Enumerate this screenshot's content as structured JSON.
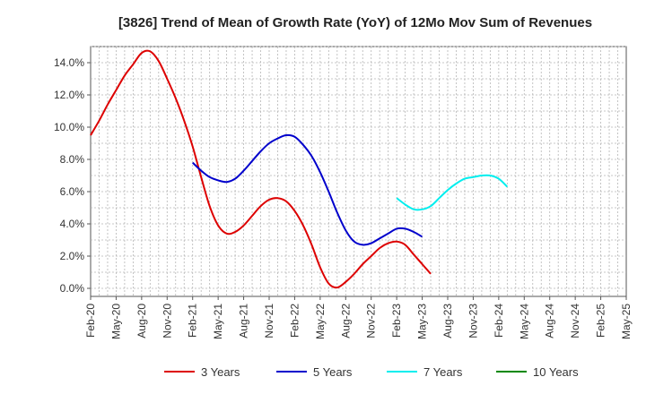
{
  "chart_data": {
    "type": "line",
    "title": "[3826]  Trend of Mean of Growth Rate (YoY) of 12Mo Mov Sum of Revenues",
    "xlabel": "",
    "ylabel": "",
    "ylim": [
      -0.5,
      15.0
    ],
    "yticks": [
      0,
      2,
      4,
      6,
      8,
      10,
      12,
      14
    ],
    "ytick_labels": [
      "0.0%",
      "2.0%",
      "4.0%",
      "6.0%",
      "8.0%",
      "10.0%",
      "12.0%",
      "14.0%"
    ],
    "x_labels": [
      "Feb-20",
      "May-20",
      "Aug-20",
      "Nov-20",
      "Feb-21",
      "May-21",
      "Aug-21",
      "Nov-21",
      "Feb-22",
      "May-22",
      "Aug-22",
      "Nov-22",
      "Feb-23",
      "May-23",
      "Aug-23",
      "Nov-23",
      "Feb-24",
      "May-24",
      "Aug-24",
      "Nov-24",
      "Feb-25",
      "May-25"
    ],
    "grid": true,
    "legend_position": "bottom",
    "series": [
      {
        "name": "3 Years",
        "color": "#dd0000",
        "start_index": 0,
        "values": [
          9.5,
          10.4,
          11.4,
          12.3,
          13.2,
          13.9,
          14.6,
          14.7,
          14.1,
          13.0,
          11.8,
          10.4,
          8.8,
          6.9,
          5.1,
          3.9,
          3.4,
          3.5,
          3.9,
          4.5,
          5.1,
          5.5,
          5.6,
          5.4,
          4.8,
          3.9,
          2.7,
          1.3,
          0.3,
          0.05,
          0.4,
          0.9,
          1.5,
          2.0,
          2.5,
          2.8,
          2.9,
          2.7,
          2.1,
          1.5,
          0.9
        ]
      },
      {
        "name": "5 Years",
        "color": "#0000cc",
        "start_index": 12,
        "values": [
          7.8,
          7.3,
          6.9,
          6.7,
          6.6,
          6.8,
          7.3,
          7.9,
          8.5,
          9.0,
          9.3,
          9.5,
          9.4,
          8.9,
          8.2,
          7.2,
          6.0,
          4.7,
          3.6,
          2.9,
          2.7,
          2.8,
          3.1,
          3.4,
          3.7,
          3.7,
          3.5,
          3.2
        ]
      },
      {
        "name": "7 Years",
        "color": "#00eeee",
        "start_index": 36,
        "values": [
          5.6,
          5.2,
          4.9,
          4.9,
          5.1,
          5.6,
          6.1,
          6.5,
          6.8,
          6.9,
          7.0,
          7.0,
          6.8,
          6.3
        ]
      },
      {
        "name": "10 Years",
        "color": "#008800",
        "start_index": 0,
        "values": []
      }
    ]
  }
}
